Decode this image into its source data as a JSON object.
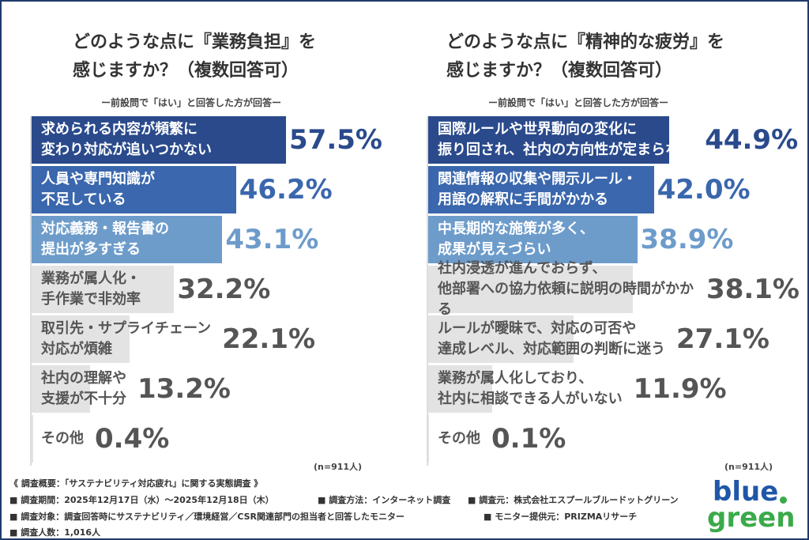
{
  "chart_data": [
    {
      "type": "bar",
      "title": "どのような点に『業務負担』を\n感じますか？（複数回答可）",
      "subtitle": "ー前設問で「はい」と回答した方が回答ー",
      "categories": [
        "求められる内容が頻繁に\n変わり対応が追いつかない",
        "人員や専門知識が\n不足している",
        "対応義務・報告書の\n提出が多すぎる",
        "業務が属人化・\n手作業で非効率",
        "取引先・サプライチェーン\n対応が煩雑",
        "社内の理解や\n支援が不十分",
        "その他"
      ],
      "values": [
        57.5,
        46.2,
        43.1,
        32.2,
        22.1,
        13.2,
        0.4
      ],
      "value_labels": [
        "57.5%",
        "46.2%",
        "43.1%",
        "32.2%",
        "22.1%",
        "13.2%",
        "0.4%"
      ],
      "colors": [
        "#2a4a8c",
        "#3a67ad",
        "#6d9ccb",
        "#e3e3e3",
        "#e3e3e3",
        "#e3e3e3",
        "#e3e3e3"
      ],
      "label_colors": [
        "#ffffff",
        "#ffffff",
        "#ffffff",
        "#555555",
        "#555555",
        "#555555",
        "#555555"
      ],
      "value_label_colors": [
        "#2a4a8c",
        "#3a67ad",
        "#6d9ccb",
        "#555555",
        "#555555",
        "#555555",
        "#555555"
      ],
      "note": "(n=911人)"
    },
    {
      "type": "bar",
      "title": "どのような点に『精神的な疲労』を\n感じますか？（複数回答可）",
      "subtitle": "ー前設問で「はい」と回答した方が回答ー",
      "categories": [
        "国際ルールや世界動向の変化に\n振り回され、社内の方向性が定まらない",
        "関連情報の収集や開示ルール・\n用語の解釈に手間がかかる",
        "中長期的な施策が多く、\n成果が見えづらい",
        "社内浸透が進んでおらず、\n他部署への協力依頼に説明の時間がかかる",
        "ルールが曖昧で、対応の可否や\n達成レベル、対応範囲の判断に迷う",
        "業務が属人化しており、\n社内に相談できる人がいない",
        "その他"
      ],
      "values": [
        44.9,
        42.0,
        38.9,
        38.1,
        27.1,
        11.9,
        0.1
      ],
      "value_labels": [
        "44.9%",
        "42.0%",
        "38.9%",
        "38.1%",
        "27.1%",
        "11.9%",
        "0.1%"
      ],
      "colors": [
        "#2a4a8c",
        "#3a67ad",
        "#6d9ccb",
        "#e3e3e3",
        "#e3e3e3",
        "#e3e3e3",
        "#e3e3e3"
      ],
      "label_colors": [
        "#ffffff",
        "#ffffff",
        "#ffffff",
        "#555555",
        "#555555",
        "#555555",
        "#555555"
      ],
      "value_label_colors": [
        "#2a4a8c",
        "#3a67ad",
        "#6d9ccb",
        "#555555",
        "#555555",
        "#555555",
        "#555555"
      ],
      "note": "(n=911人)"
    }
  ],
  "footer": {
    "heading": "《 調査概要：「サステナビリティ対応疲れ」に関する実態調査 》",
    "period": "■ 調査期間：2025年12月17日（水）〜2025年12月18日（木）",
    "method": "■ 調査方法：インターネット調査",
    "source": "■ 調査元：株式会社エスプールブルードットグリーン",
    "target": "■ 調査対象：調査回答時にサステナビリティ／環境経営／CSR関連部門の担当者と回答したモニター",
    "provider": "■ モニター提供元：PRIZMAリサーチ",
    "count": "■ 調査人数：1,016人"
  },
  "logo": {
    "top": "blue",
    "bottom": "green"
  }
}
